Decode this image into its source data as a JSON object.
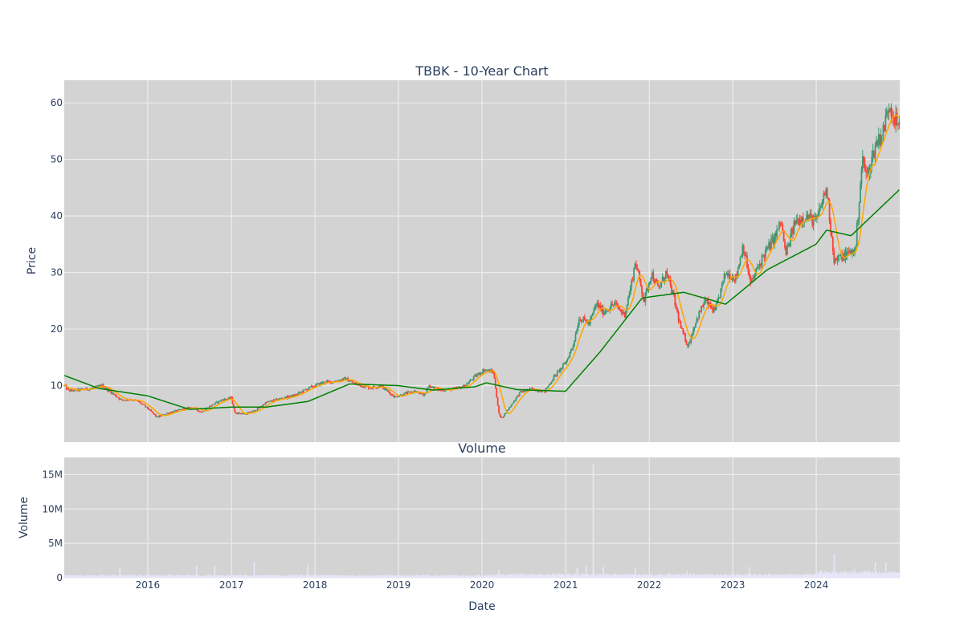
{
  "chart_data": [
    {
      "type": "candlestick",
      "title": "TBBK - 10-Year Chart",
      "xlabel": "",
      "ylabel": "Price",
      "x_ticks": [
        "2016",
        "2017",
        "2018",
        "2019",
        "2020",
        "2021",
        "2022",
        "2023",
        "2024"
      ],
      "y_ticks": [
        10,
        20,
        30,
        40,
        50,
        60
      ],
      "ylim": [
        0,
        64
      ],
      "xlim": [
        "2015-01-01",
        "2024-12-31"
      ],
      "grid": true,
      "colors": {
        "background": "#d3d3d3",
        "grid": "#ececec",
        "increasing": "#3d9970",
        "decreasing": "#ff4136",
        "fast_ma": "#ffa500",
        "slow_ma": "#008000"
      },
      "price_path": [
        [
          "2015-01-01",
          10
        ],
        [
          "2015-01-20",
          9.1
        ],
        [
          "2015-03-01",
          9.2
        ],
        [
          "2015-05-01",
          9.5
        ],
        [
          "2015-06-15",
          10
        ],
        [
          "2015-08-01",
          8.6
        ],
        [
          "2015-09-10",
          7.4
        ],
        [
          "2015-10-15",
          7.6
        ],
        [
          "2015-11-20",
          7.2
        ],
        [
          "2015-12-31",
          6.0
        ],
        [
          "2016-02-10",
          4.4
        ],
        [
          "2016-04-01",
          5.2
        ],
        [
          "2016-06-01",
          5.8
        ],
        [
          "2016-07-15",
          6.2
        ],
        [
          "2016-08-20",
          5.3
        ],
        [
          "2016-10-01",
          6.4
        ],
        [
          "2016-11-20",
          7.5
        ],
        [
          "2016-12-31",
          7.8
        ],
        [
          "2017-01-15",
          5.2
        ],
        [
          "2017-03-01",
          5.0
        ],
        [
          "2017-04-15",
          5.6
        ],
        [
          "2017-06-01",
          7.0
        ],
        [
          "2017-08-01",
          7.7
        ],
        [
          "2017-10-01",
          8.2
        ],
        [
          "2017-12-01",
          9.5
        ],
        [
          "2018-02-01",
          10.5
        ],
        [
          "2018-04-01",
          10.8
        ],
        [
          "2018-05-15",
          11.2
        ],
        [
          "2018-07-01",
          10.2
        ],
        [
          "2018-09-01",
          9.6
        ],
        [
          "2018-10-15",
          10.0
        ],
        [
          "2018-12-15",
          8.0
        ],
        [
          "2019-02-01",
          8.6
        ],
        [
          "2019-03-15",
          9.0
        ],
        [
          "2019-04-20",
          8.2
        ],
        [
          "2019-05-15",
          10.0
        ],
        [
          "2019-07-01",
          9.2
        ],
        [
          "2019-09-01",
          9.4
        ],
        [
          "2019-10-15",
          9.9
        ],
        [
          "2019-12-01",
          11.6
        ],
        [
          "2020-01-10",
          12.8
        ],
        [
          "2020-02-20",
          12.4
        ],
        [
          "2020-03-15",
          5.0
        ],
        [
          "2020-03-25",
          4.2
        ],
        [
          "2020-05-01",
          6.2
        ],
        [
          "2020-06-15",
          8.8
        ],
        [
          "2020-08-01",
          9.4
        ],
        [
          "2020-10-01",
          9.0
        ],
        [
          "2020-11-10",
          11.5
        ],
        [
          "2020-12-31",
          14.0
        ],
        [
          "2021-02-01",
          17.0
        ],
        [
          "2021-03-01",
          22.0
        ],
        [
          "2021-04-15",
          21.0
        ],
        [
          "2021-05-15",
          24.5
        ],
        [
          "2021-06-15",
          23.0
        ],
        [
          "2021-08-01",
          24.5
        ],
        [
          "2021-09-15",
          22.5
        ],
        [
          "2021-10-15",
          28.0
        ],
        [
          "2021-11-01",
          32.0
        ],
        [
          "2021-12-10",
          25.0
        ],
        [
          "2022-01-10",
          30.0
        ],
        [
          "2022-02-10",
          27.0
        ],
        [
          "2022-03-15",
          30.0
        ],
        [
          "2022-04-15",
          26.0
        ],
        [
          "2022-05-20",
          20.0
        ],
        [
          "2022-06-20",
          17.0
        ],
        [
          "2022-07-20",
          21.0
        ],
        [
          "2022-09-01",
          25.0
        ],
        [
          "2022-10-15",
          23.0
        ],
        [
          "2022-12-01",
          30.0
        ],
        [
          "2023-01-15",
          29.0
        ],
        [
          "2023-02-15",
          35.0
        ],
        [
          "2023-03-20",
          28.0
        ],
        [
          "2023-05-15",
          33.0
        ],
        [
          "2023-07-01",
          36.0
        ],
        [
          "2023-08-01",
          39.0
        ],
        [
          "2023-08-20",
          33.0
        ],
        [
          "2023-10-01",
          39.0
        ],
        [
          "2023-11-15",
          40.0
        ],
        [
          "2024-01-01",
          39.0
        ],
        [
          "2024-02-15",
          45.0
        ],
        [
          "2024-03-20",
          32.0
        ],
        [
          "2024-05-01",
          33.0
        ],
        [
          "2024-06-20",
          34.0
        ],
        [
          "2024-07-20",
          50.0
        ],
        [
          "2024-08-10",
          47.0
        ],
        [
          "2024-09-20",
          53.0
        ],
        [
          "2024-10-20",
          55.0
        ],
        [
          "2024-11-15",
          60.0
        ],
        [
          "2024-12-31",
          55.0
        ]
      ],
      "slow_ma_path": [
        [
          "2015-01-01",
          11.8
        ],
        [
          "2015-06-01",
          9.5
        ],
        [
          "2015-12-31",
          8.2
        ],
        [
          "2016-07-01",
          5.8
        ],
        [
          "2016-12-31",
          6.2
        ],
        [
          "2017-06-01",
          6.2
        ],
        [
          "2017-12-01",
          7.2
        ],
        [
          "2018-06-01",
          10.3
        ],
        [
          "2018-12-31",
          10.0
        ],
        [
          "2019-06-01",
          9.2
        ],
        [
          "2019-12-01",
          9.8
        ],
        [
          "2020-01-20",
          10.5
        ],
        [
          "2020-06-01",
          9.3
        ],
        [
          "2020-12-31",
          9.0
        ],
        [
          "2021-06-01",
          16.0
        ],
        [
          "2021-12-01",
          25.5
        ],
        [
          "2022-06-01",
          26.5
        ],
        [
          "2022-12-01",
          24.4
        ],
        [
          "2023-06-01",
          30.5
        ],
        [
          "2023-12-31",
          35.0
        ],
        [
          "2024-02-15",
          37.5
        ],
        [
          "2024-06-01",
          36.5
        ],
        [
          "2024-12-31",
          44.7
        ]
      ]
    },
    {
      "type": "bar",
      "title": "Volume",
      "xlabel": "Date",
      "ylabel": "Volume",
      "x_ticks": [
        "2016",
        "2017",
        "2018",
        "2019",
        "2020",
        "2021",
        "2022",
        "2023",
        "2024"
      ],
      "y_ticks": [
        {
          "value": 0,
          "label": "0"
        },
        {
          "value": 5000000,
          "label": "5M"
        },
        {
          "value": 10000000,
          "label": "10M"
        },
        {
          "value": 15000000,
          "label": "15M"
        }
      ],
      "ylim": [
        0,
        17500000
      ],
      "grid": true,
      "colors": {
        "bar": "#e6e6fa",
        "background": "#d3d3d3",
        "grid": "#ececec"
      },
      "spikes": [
        [
          "2015-09-01",
          1500000
        ],
        [
          "2016-08-01",
          1800000
        ],
        [
          "2016-10-20",
          1700000
        ],
        [
          "2017-04-10",
          2300000
        ],
        [
          "2017-12-01",
          1900000
        ],
        [
          "2020-03-15",
          1200000
        ],
        [
          "2021-02-20",
          1500000
        ],
        [
          "2021-04-01",
          1800000
        ],
        [
          "2021-05-01",
          16500000
        ],
        [
          "2021-06-15",
          1600000
        ],
        [
          "2021-11-01",
          1500000
        ],
        [
          "2022-06-15",
          1000000
        ],
        [
          "2023-03-15",
          1600000
        ],
        [
          "2024-03-20",
          3500000
        ],
        [
          "2024-06-15",
          1300000
        ],
        [
          "2024-09-15",
          2300000
        ],
        [
          "2024-11-01",
          2200000
        ]
      ]
    }
  ]
}
